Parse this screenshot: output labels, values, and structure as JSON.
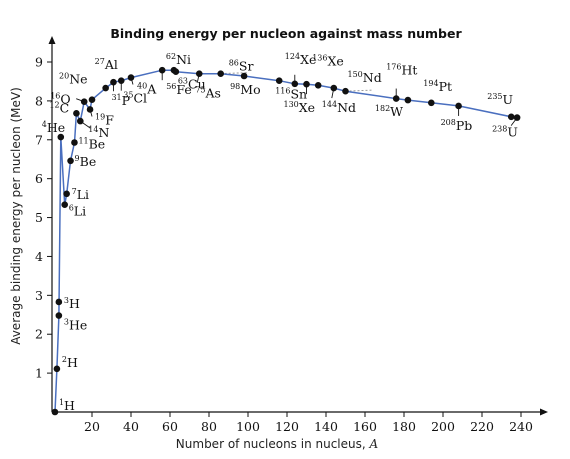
{
  "chart_data": {
    "type": "line",
    "title": "Binding energy per nucleon against mass number",
    "xlabel": "Number of nucleons in nucleus, ",
    "xlabel_var": "A",
    "ylabel": "Average binding energy per nucleon (MeV)",
    "xlim": [
      0,
      245
    ],
    "ylim": [
      0,
      9.5
    ],
    "xticks": [
      20,
      40,
      60,
      80,
      100,
      120,
      140,
      160,
      180,
      200,
      220,
      240
    ],
    "yticks": [
      1,
      2,
      3,
      4,
      5,
      6,
      7,
      8,
      9
    ],
    "grid": false,
    "legend": "none",
    "colors": {
      "line": "#4a6fbf",
      "point": "#111111",
      "axis": "#111111",
      "dash": "#9a9a9a"
    },
    "series": [
      {
        "points": [
          {
            "x": 1,
            "y": 0,
            "mass": "1",
            "sym": "H"
          },
          {
            "x": 2,
            "y": 1.11,
            "mass": "2",
            "sym": "H"
          },
          {
            "x": 3,
            "y": 2.48,
            "mass": "3",
            "sym": "He"
          },
          {
            "x": 3,
            "y": 2.83,
            "mass": "3",
            "sym": "H"
          },
          {
            "x": 4,
            "y": 7.07,
            "mass": "4",
            "sym": "He"
          },
          {
            "x": 6,
            "y": 5.33,
            "mass": "6",
            "sym": "Li"
          },
          {
            "x": 7,
            "y": 5.61,
            "mass": "7",
            "sym": "Li"
          },
          {
            "x": 9,
            "y": 6.46,
            "mass": "9",
            "sym": "Be"
          },
          {
            "x": 11,
            "y": 6.93,
            "mass": "11",
            "sym": "Be"
          },
          {
            "x": 12,
            "y": 7.68,
            "mass": "12",
            "sym": "C"
          },
          {
            "x": 14,
            "y": 7.48,
            "mass": "14",
            "sym": "N"
          },
          {
            "x": 16,
            "y": 7.98,
            "mass": "16",
            "sym": "O"
          },
          {
            "x": 19,
            "y": 7.78,
            "mass": "19",
            "sym": "F"
          },
          {
            "x": 20,
            "y": 8.03,
            "mass": "20",
            "sym": "Ne"
          },
          {
            "x": 27,
            "y": 8.33,
            "mass": "27",
            "sym": "Al"
          },
          {
            "x": 31,
            "y": 8.48,
            "mass": "31",
            "sym": "P"
          },
          {
            "x": 35,
            "y": 8.52,
            "mass": "35",
            "sym": "Cl"
          },
          {
            "x": 40,
            "y": 8.6,
            "mass": "40",
            "sym": "A"
          },
          {
            "x": 56,
            "y": 8.79,
            "mass": "56",
            "sym": "Fe"
          },
          {
            "x": 62,
            "y": 8.79,
            "mass": "62",
            "sym": "Ni"
          },
          {
            "x": 63,
            "y": 8.75,
            "mass": "63",
            "sym": "Cu"
          },
          {
            "x": 75,
            "y": 8.7,
            "mass": "75",
            "sym": "As"
          },
          {
            "x": 86,
            "y": 8.7,
            "mass": "86",
            "sym": "Sr"
          },
          {
            "x": 98,
            "y": 8.64,
            "mass": "98",
            "sym": "Mo"
          },
          {
            "x": 116,
            "y": 8.52,
            "mass": "116",
            "sym": "Sn"
          },
          {
            "x": 124,
            "y": 8.44,
            "mass": "124",
            "sym": "Xe"
          },
          {
            "x": 130,
            "y": 8.43,
            "mass": "130",
            "sym": "Xe"
          },
          {
            "x": 136,
            "y": 8.4,
            "mass": "136",
            "sym": "Xe"
          },
          {
            "x": 144,
            "y": 8.33,
            "mass": "144",
            "sym": "Nd"
          },
          {
            "x": 150,
            "y": 8.25,
            "mass": "150",
            "sym": "Nd"
          },
          {
            "x": 176,
            "y": 8.06,
            "mass": "176",
            "sym": "Ht"
          },
          {
            "x": 182,
            "y": 8.02,
            "mass": "182",
            "sym": "W"
          },
          {
            "x": 194,
            "y": 7.95,
            "mass": "194",
            "sym": "Pt"
          },
          {
            "x": 208,
            "y": 7.87,
            "mass": "208",
            "sym": "Pb"
          },
          {
            "x": 235,
            "y": 7.59,
            "mass": "235",
            "sym": "U"
          },
          {
            "x": 238,
            "y": 7.57,
            "mass": "238",
            "sym": "U"
          }
        ]
      }
    ]
  }
}
